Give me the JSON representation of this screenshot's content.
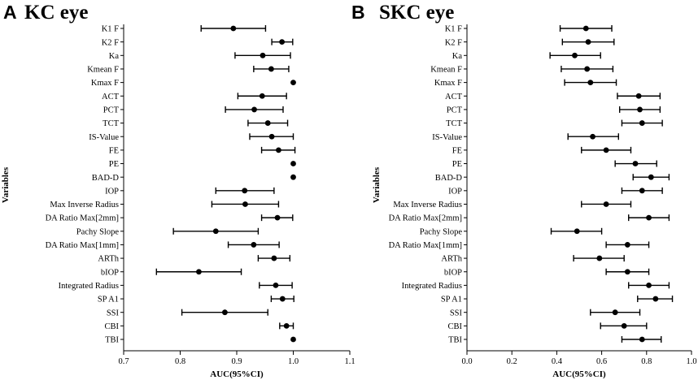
{
  "chart_data": [
    {
      "type": "forest",
      "panel": "A",
      "title": "KC eye",
      "xlabel": "AUC(95%CI)",
      "ylabel": "Variables",
      "xlim": [
        0.7,
        1.1
      ],
      "xticks": [
        "0.7",
        "0.8",
        "0.9",
        "1.0",
        "1.1"
      ],
      "categories": [
        "K1 F",
        "K2 F",
        "Ka",
        "Kmean F",
        "Kmax F",
        "ACT",
        "PCT",
        "TCT",
        "IS-Value",
        "FE",
        "PE",
        "BAD-D",
        "IOP",
        "Max Inverse Radius",
        "DA Ratio Max[2mm]",
        "Pachy Slope",
        "DA Ratio Max[1mm]",
        "ARTh",
        "bIOP",
        "Integrated Radius",
        "SP A1",
        "SSI",
        "CBI",
        "TBI"
      ],
      "auc": [
        0.894,
        0.98,
        0.946,
        0.961,
        1.0,
        0.945,
        0.931,
        0.955,
        0.962,
        0.974,
        1.0,
        1.0,
        0.914,
        0.915,
        0.972,
        0.863,
        0.93,
        0.966,
        0.833,
        0.969,
        0.981,
        0.879,
        0.988,
        1.0
      ],
      "lower": [
        0.837,
        0.962,
        0.897,
        0.93,
        1.0,
        0.902,
        0.88,
        0.92,
        0.923,
        0.944,
        1.0,
        1.0,
        0.863,
        0.856,
        0.944,
        0.788,
        0.885,
        0.938,
        0.758,
        0.94,
        0.961,
        0.803,
        0.976,
        1.0
      ],
      "upper": [
        0.951,
        0.999,
        0.995,
        0.992,
        1.0,
        0.988,
        0.982,
        0.99,
        1.0,
        1.003,
        1.0,
        1.0,
        0.966,
        0.974,
        0.999,
        0.938,
        0.975,
        0.994,
        0.908,
        0.998,
        1.001,
        0.955,
        1.0,
        1.0
      ]
    },
    {
      "type": "forest",
      "panel": "B",
      "title": "SKC eye",
      "xlabel": "AUC(95%CI)",
      "ylabel": "Variables",
      "xlim": [
        0.0,
        1.0
      ],
      "xticks": [
        "0.0",
        "0.2",
        "0.4",
        "0.6",
        "0.8",
        "1.0"
      ],
      "categories": [
        "K1 F",
        "K2 F",
        "Ka",
        "Kmean F",
        "Kmax F",
        "ACT",
        "PCT",
        "TCT",
        "IS-Value",
        "FE",
        "PE",
        "BAD-D",
        "IOP",
        "Max Inverse Radius",
        "DA Ratio Max[2mm]",
        "Pachy Slope",
        "DA Ratio Max[1mm]",
        "ARTh",
        "bIOP",
        "Integrated Radius",
        "SP A1",
        "SSI",
        "CBI",
        "TBI"
      ],
      "auc": [
        0.53,
        0.54,
        0.48,
        0.535,
        0.55,
        0.765,
        0.77,
        0.78,
        0.56,
        0.62,
        0.75,
        0.82,
        0.78,
        0.62,
        0.81,
        0.49,
        0.715,
        0.59,
        0.715,
        0.81,
        0.84,
        0.66,
        0.7,
        0.78
      ],
      "lower": [
        0.415,
        0.425,
        0.37,
        0.42,
        0.435,
        0.67,
        0.68,
        0.69,
        0.45,
        0.51,
        0.66,
        0.74,
        0.69,
        0.51,
        0.72,
        0.375,
        0.62,
        0.475,
        0.62,
        0.72,
        0.76,
        0.55,
        0.595,
        0.69
      ],
      "upper": [
        0.645,
        0.655,
        0.595,
        0.65,
        0.665,
        0.86,
        0.86,
        0.87,
        0.675,
        0.73,
        0.845,
        0.9,
        0.87,
        0.73,
        0.9,
        0.6,
        0.81,
        0.7,
        0.81,
        0.9,
        0.915,
        0.77,
        0.8,
        0.865
      ]
    }
  ]
}
